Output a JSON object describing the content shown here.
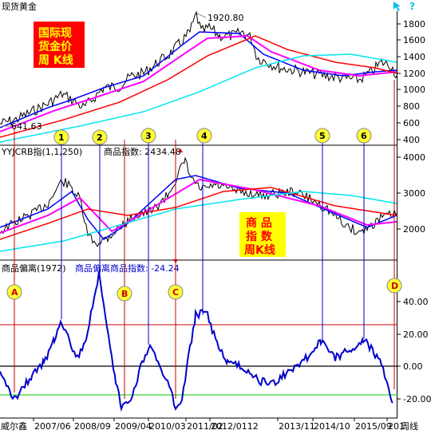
{
  "window": {
    "title": "现货黄金",
    "question_icon": "?",
    "cursor_icon": "cursor-icon"
  },
  "top_panel": {
    "caption_lines": [
      "国际现",
      "货金价",
      "周 K线"
    ],
    "peak_label": "1920.80",
    "low_label": "641.63",
    "y_ticks": [
      "1800",
      "1600",
      "1400",
      "1200",
      "1000",
      "800",
      "600",
      "400"
    ],
    "circle_markers": [
      "1",
      "2",
      "3",
      "4",
      "5",
      "6"
    ]
  },
  "mid_panel": {
    "title": "YYJCRB指(1,1,250)",
    "value_label": "商品指数: 2434.48",
    "caption_lines": [
      "商 品",
      "指 数",
      "周K线"
    ],
    "y_ticks": [
      "4000",
      "3000",
      "2000"
    ]
  },
  "bottom_panel": {
    "title": "商品偏离(1972)",
    "value_label": "商品偏离商品指数: -24.24",
    "circle_markers": [
      "A",
      "B",
      "C",
      "D"
    ],
    "y_ticks": [
      "40.00",
      "20.00",
      "0.00",
      "-20.00"
    ]
  },
  "x_axis": {
    "left_label": "威尔鑫",
    "ticks": [
      "2007/06",
      "2008/09",
      "2009/04",
      "2010/03",
      "2011/02",
      "2012/0112",
      "2013/11",
      "2014/10",
      "2015/09",
      "201"
    ],
    "right_label": "周线"
  },
  "colors": {
    "price_line": "#000000",
    "ma_blue": "#0000ff",
    "ma_magenta": "#ff00ff",
    "ma_red": "#ff0000",
    "ma_cyan": "#00e5ee",
    "deviation_line": "#0000cc",
    "marker_fill": "#ffff33",
    "caption_bg": "#ff0000",
    "caption_text": "#ffff00",
    "caption2_bg": "#ffff00",
    "caption2_text": "#ff0000",
    "ref_red": "#cc0000",
    "ref_green": "#00cc00"
  }
}
